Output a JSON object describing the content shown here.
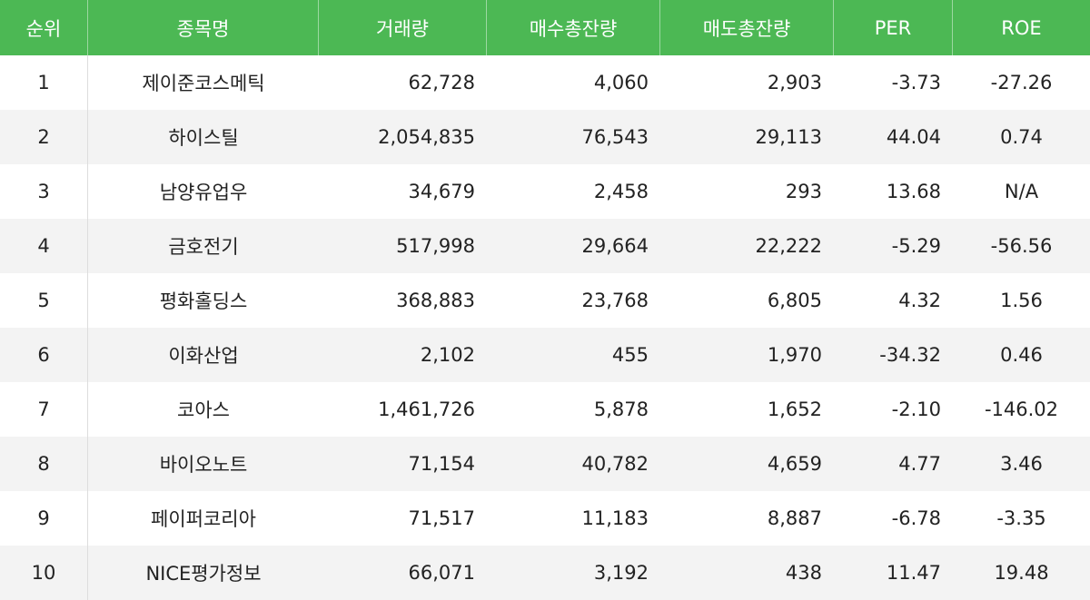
{
  "header": {
    "rank": "순위",
    "name": "종목명",
    "volume": "거래량",
    "buy_total": "매수총잔량",
    "sell_total": "매도총잔량",
    "per": "PER",
    "roe": "ROE"
  },
  "colors": {
    "header_bg": "#4cb854",
    "header_text": "#ffffff",
    "stripe": "#f3f3f3"
  },
  "rows": [
    {
      "rank": "1",
      "name": "제이준코스메틱",
      "volume": "62,728",
      "buy_total": "4,060",
      "sell_total": "2,903",
      "per": "-3.73",
      "roe": "-27.26"
    },
    {
      "rank": "2",
      "name": "하이스틸",
      "volume": "2,054,835",
      "buy_total": "76,543",
      "sell_total": "29,113",
      "per": "44.04",
      "roe": "0.74"
    },
    {
      "rank": "3",
      "name": "남양유업우",
      "volume": "34,679",
      "buy_total": "2,458",
      "sell_total": "293",
      "per": "13.68",
      "roe": "N/A"
    },
    {
      "rank": "4",
      "name": "금호전기",
      "volume": "517,998",
      "buy_total": "29,664",
      "sell_total": "22,222",
      "per": "-5.29",
      "roe": "-56.56"
    },
    {
      "rank": "5",
      "name": "평화홀딩스",
      "volume": "368,883",
      "buy_total": "23,768",
      "sell_total": "6,805",
      "per": "4.32",
      "roe": "1.56"
    },
    {
      "rank": "6",
      "name": "이화산업",
      "volume": "2,102",
      "buy_total": "455",
      "sell_total": "1,970",
      "per": "-34.32",
      "roe": "0.46"
    },
    {
      "rank": "7",
      "name": "코아스",
      "volume": "1,461,726",
      "buy_total": "5,878",
      "sell_total": "1,652",
      "per": "-2.10",
      "roe": "-146.02"
    },
    {
      "rank": "8",
      "name": "바이오노트",
      "volume": "71,154",
      "buy_total": "40,782",
      "sell_total": "4,659",
      "per": "4.77",
      "roe": "3.46"
    },
    {
      "rank": "9",
      "name": "페이퍼코리아",
      "volume": "71,517",
      "buy_total": "11,183",
      "sell_total": "8,887",
      "per": "-6.78",
      "roe": "-3.35"
    },
    {
      "rank": "10",
      "name": "NICE평가정보",
      "volume": "66,071",
      "buy_total": "3,192",
      "sell_total": "438",
      "per": "11.47",
      "roe": "19.48"
    }
  ]
}
